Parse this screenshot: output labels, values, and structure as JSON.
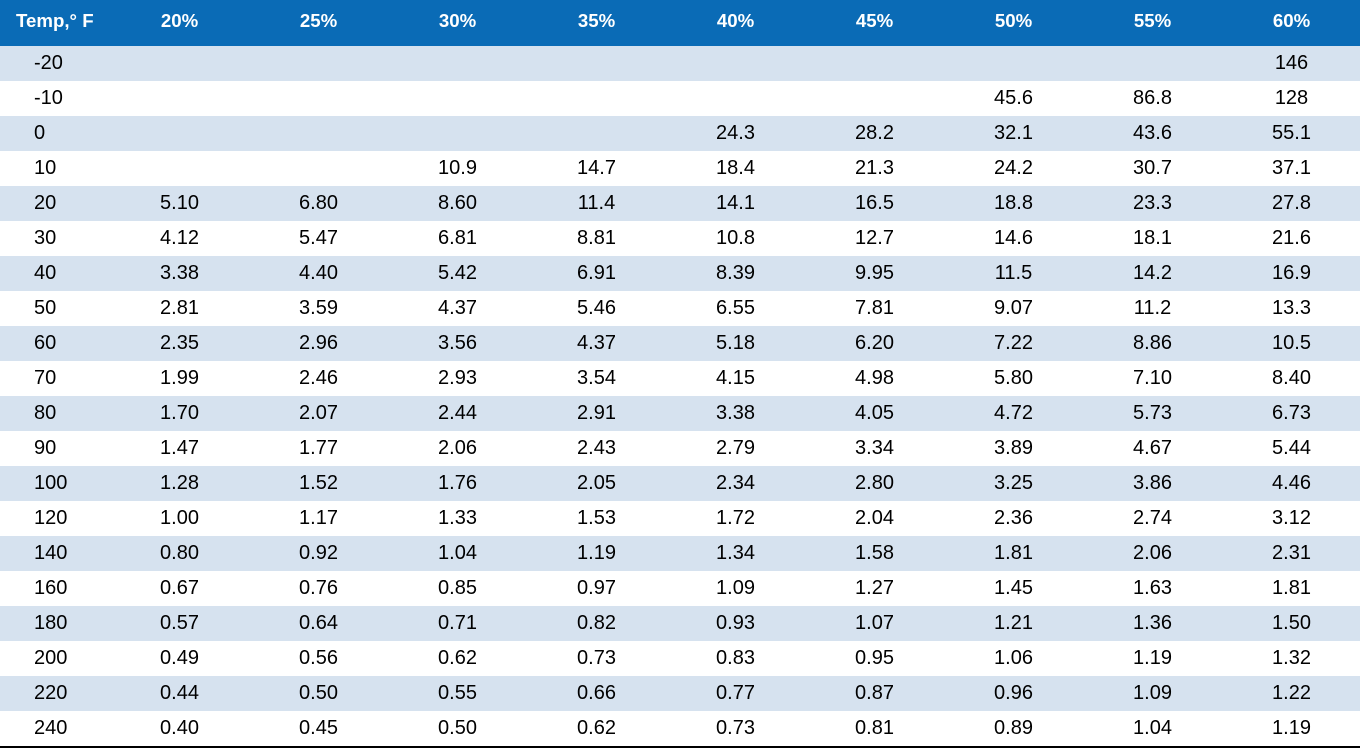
{
  "table": {
    "type": "table",
    "header_bg": "#0a6bb6",
    "header_fg": "#ffffff",
    "row_even_bg": "#d6e2ef",
    "row_odd_bg": "#ffffff",
    "text_color": "#000000",
    "border_bottom_color": "#000000",
    "header_fontsize_pt": 14,
    "body_fontsize_pt": 15,
    "columns": [
      "Temp,° F",
      "20%",
      "25%",
      "30%",
      "35%",
      "40%",
      "45%",
      "50%",
      "55%",
      "60%"
    ],
    "rows": [
      [
        "-20",
        "",
        "",
        "",
        "",
        "",
        "",
        "",
        "",
        "146"
      ],
      [
        "-10",
        "",
        "",
        "",
        "",
        "",
        "",
        "45.6",
        "86.8",
        "128"
      ],
      [
        "0",
        "",
        "",
        "",
        "",
        "24.3",
        "28.2",
        "32.1",
        "43.6",
        "55.1"
      ],
      [
        "10",
        "",
        "",
        "10.9",
        "14.7",
        "18.4",
        "21.3",
        "24.2",
        "30.7",
        "37.1"
      ],
      [
        "20",
        "5.10",
        "6.80",
        "8.60",
        "11.4",
        "14.1",
        "16.5",
        "18.8",
        "23.3",
        "27.8"
      ],
      [
        "30",
        "4.12",
        "5.47",
        "6.81",
        "8.81",
        "10.8",
        "12.7",
        "14.6",
        "18.1",
        "21.6"
      ],
      [
        "40",
        "3.38",
        "4.40",
        "5.42",
        "6.91",
        "8.39",
        "9.95",
        "11.5",
        "14.2",
        "16.9"
      ],
      [
        "50",
        "2.81",
        "3.59",
        "4.37",
        "5.46",
        "6.55",
        "7.81",
        "9.07",
        "11.2",
        "13.3"
      ],
      [
        "60",
        "2.35",
        "2.96",
        "3.56",
        "4.37",
        "5.18",
        "6.20",
        "7.22",
        "8.86",
        "10.5"
      ],
      [
        "70",
        "1.99",
        "2.46",
        "2.93",
        "3.54",
        "4.15",
        "4.98",
        "5.80",
        "7.10",
        "8.40"
      ],
      [
        "80",
        "1.70",
        "2.07",
        "2.44",
        "2.91",
        "3.38",
        "4.05",
        "4.72",
        "5.73",
        "6.73"
      ],
      [
        "90",
        "1.47",
        "1.77",
        "2.06",
        "2.43",
        "2.79",
        "3.34",
        "3.89",
        "4.67",
        "5.44"
      ],
      [
        "100",
        "1.28",
        "1.52",
        "1.76",
        "2.05",
        "2.34",
        "2.80",
        "3.25",
        "3.86",
        "4.46"
      ],
      [
        "120",
        "1.00",
        "1.17",
        "1.33",
        "1.53",
        "1.72",
        "2.04",
        "2.36",
        "2.74",
        "3.12"
      ],
      [
        "140",
        "0.80",
        "0.92",
        "1.04",
        "1.19",
        "1.34",
        "1.58",
        "1.81",
        "2.06",
        "2.31"
      ],
      [
        "160",
        "0.67",
        "0.76",
        "0.85",
        "0.97",
        "1.09",
        "1.27",
        "1.45",
        "1.63",
        "1.81"
      ],
      [
        "180",
        "0.57",
        "0.64",
        "0.71",
        "0.82",
        "0.93",
        "1.07",
        "1.21",
        "1.36",
        "1.50"
      ],
      [
        "200",
        "0.49",
        "0.56",
        "0.62",
        "0.73",
        "0.83",
        "0.95",
        "1.06",
        "1.19",
        "1.32"
      ],
      [
        "220",
        "0.44",
        "0.50",
        "0.55",
        "0.66",
        "0.77",
        "0.87",
        "0.96",
        "1.09",
        "1.22"
      ],
      [
        "240",
        "0.40",
        "0.45",
        "0.50",
        "0.62",
        "0.73",
        "0.81",
        "0.89",
        "1.04",
        "1.19"
      ]
    ]
  }
}
